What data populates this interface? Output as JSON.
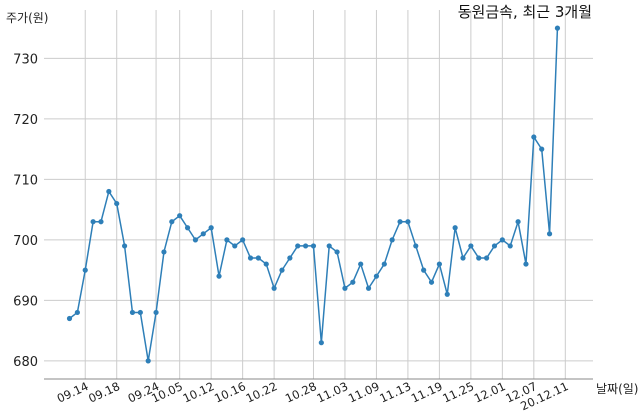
{
  "chart_data": {
    "type": "line",
    "title": "동원금속, 최근 3개월",
    "ylabel": "주가(원)",
    "xlabel": "날짜(일)",
    "ylim": [
      677,
      738
    ],
    "yticks": [
      680,
      690,
      700,
      710,
      720,
      730
    ],
    "grid": true,
    "line_color": "#2e7fb8",
    "x_tick_labels": [
      "09.14",
      "09.18",
      "09.24",
      "10.05",
      "10.12",
      "10.16",
      "10.22",
      "10.28",
      "11.03",
      "11.09",
      "11.13",
      "11.19",
      "11.25",
      "12.01",
      "12.07",
      "20.12.11"
    ],
    "x_tick_indices": [
      2,
      6,
      11,
      14,
      18,
      22,
      26,
      31,
      35,
      39,
      43,
      47,
      51,
      55,
      59,
      63
    ],
    "series": [
      {
        "values": [
          687,
          688,
          695,
          703,
          703,
          708,
          706,
          699,
          688,
          688,
          680,
          688,
          698,
          703,
          704,
          702,
          700,
          701,
          702,
          694,
          700,
          699,
          700,
          697,
          697,
          696,
          692,
          695,
          697,
          699,
          699,
          699,
          683,
          699,
          698,
          692,
          693,
          696,
          692,
          694,
          696,
          700,
          703,
          703,
          699,
          695,
          693,
          696,
          691,
          702,
          697,
          699,
          697,
          697,
          699,
          700,
          699,
          703,
          696,
          717,
          715,
          701,
          735
        ]
      }
    ]
  }
}
